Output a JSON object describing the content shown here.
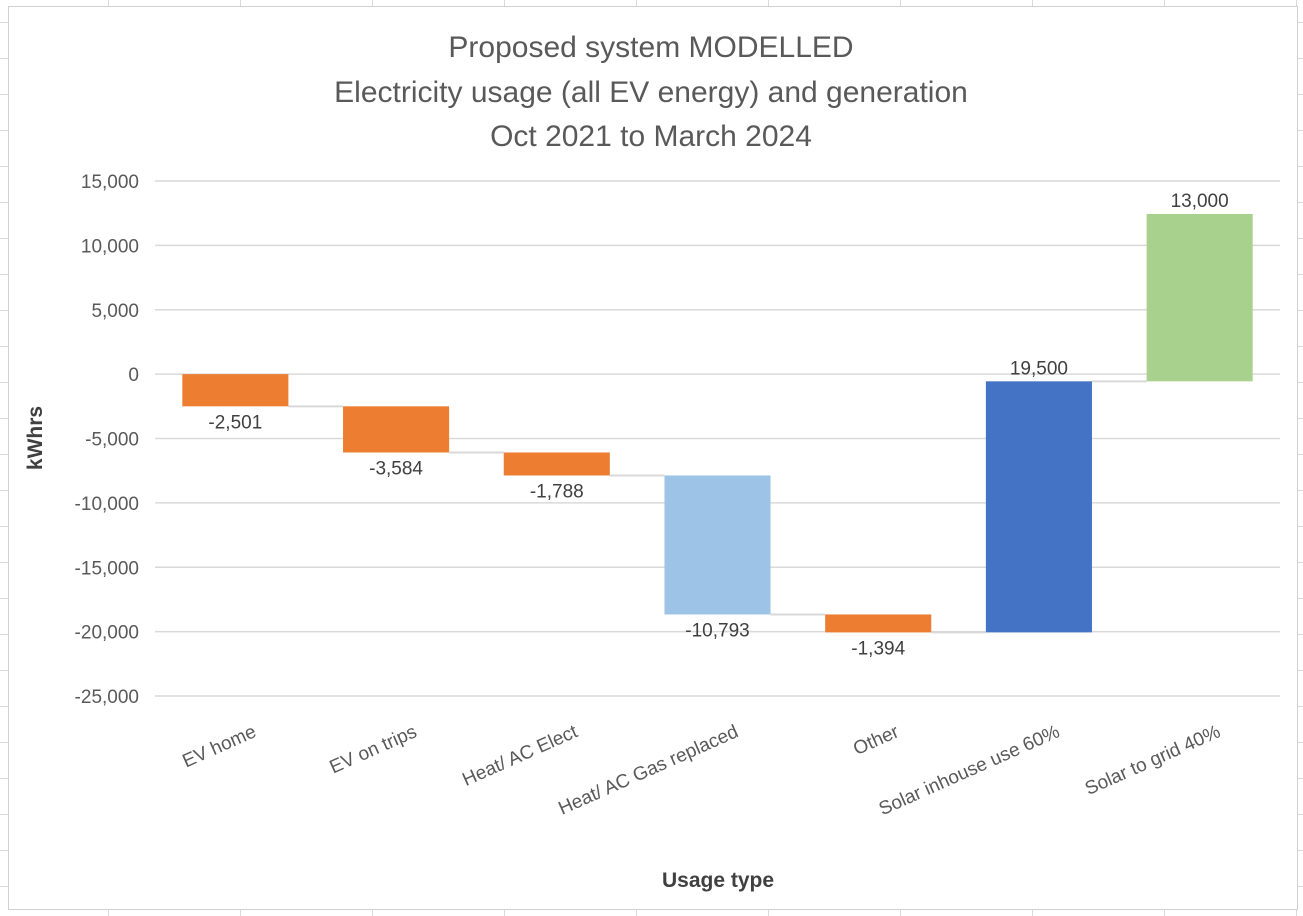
{
  "chart_data": {
    "type": "bar",
    "subtype": "waterfall",
    "title_lines": [
      "Proposed system MODELLED",
      "Electricity usage (all EV energy) and generation",
      "Oct 2021 to March 2024"
    ],
    "xlabel": "Usage type",
    "ylabel": "kWhrs",
    "ylim": [
      -25000,
      15000
    ],
    "y_ticks": [
      15000,
      10000,
      5000,
      0,
      -5000,
      -10000,
      -15000,
      -20000,
      -25000
    ],
    "y_tick_labels": [
      "15,000",
      "10,000",
      "5,000",
      "0",
      "-5,000",
      "-10,000",
      "-15,000",
      "-20,000",
      "-25,000"
    ],
    "gridlines": true,
    "legend": "none",
    "categories": [
      "EV home",
      "EV on trips",
      "Heat/ AC Elect",
      "Heat/ AC Gas replaced",
      "Other",
      "Solar inhouse use 60%",
      "Solar to grid 40%"
    ],
    "values": [
      -2501,
      -3584,
      -1788,
      -10793,
      -1394,
      19500,
      13000
    ],
    "value_labels": [
      "-2,501",
      "-3,584",
      "-1,788",
      "-10,793",
      "-1,394",
      "19,500",
      "13,000"
    ],
    "bar_colors": [
      "#ED7D31",
      "#ED7D31",
      "#ED7D31",
      "#9DC3E6",
      "#ED7D31",
      "#4472C4",
      "#A9D18E"
    ]
  }
}
